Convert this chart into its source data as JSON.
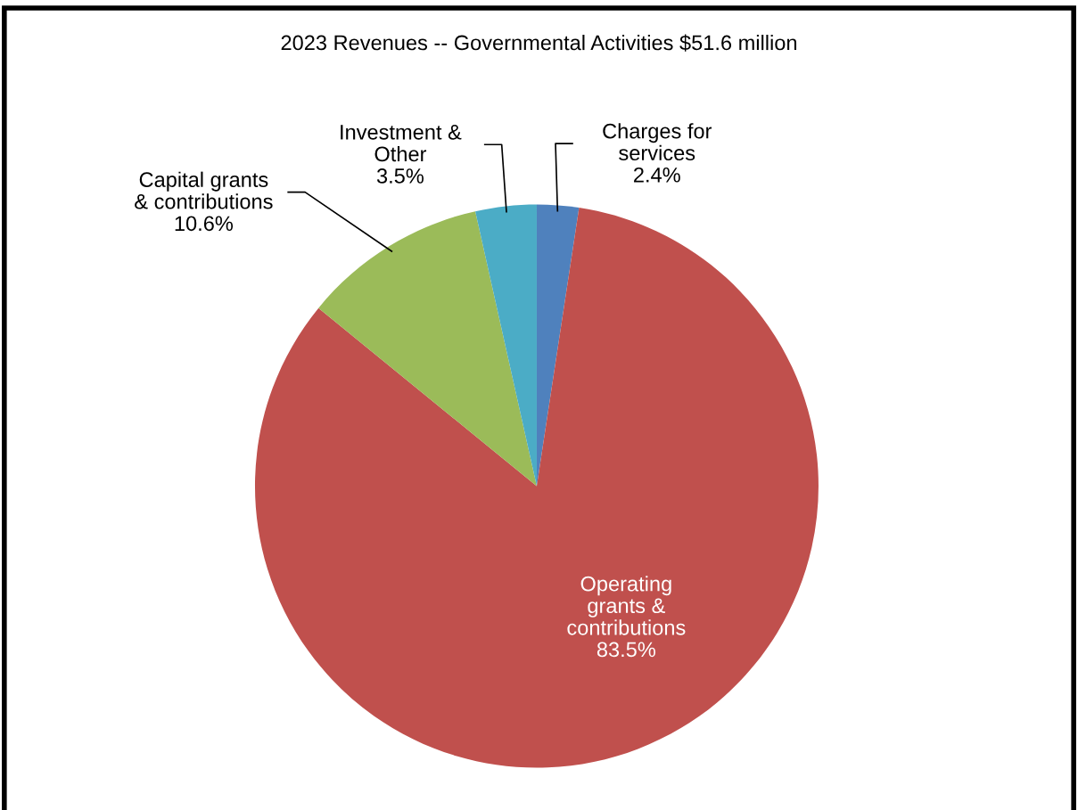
{
  "chart_data": {
    "type": "pie",
    "title": "2023 Revenues -- Governmental Activities $51.6 million",
    "categories": [
      "Charges for\nservices",
      "Operating\ngrants &\ncontributions",
      "Capital grants\n& contributions",
      "Investment &\nOther"
    ],
    "values": [
      2.4,
      83.5,
      10.6,
      3.5
    ],
    "colors": [
      "#4f81bd",
      "#c0504d",
      "#9bbb59",
      "#4bacc6"
    ],
    "value_labels": [
      "2.4%",
      "83.5%",
      "10.6%",
      "3.5%"
    ]
  }
}
